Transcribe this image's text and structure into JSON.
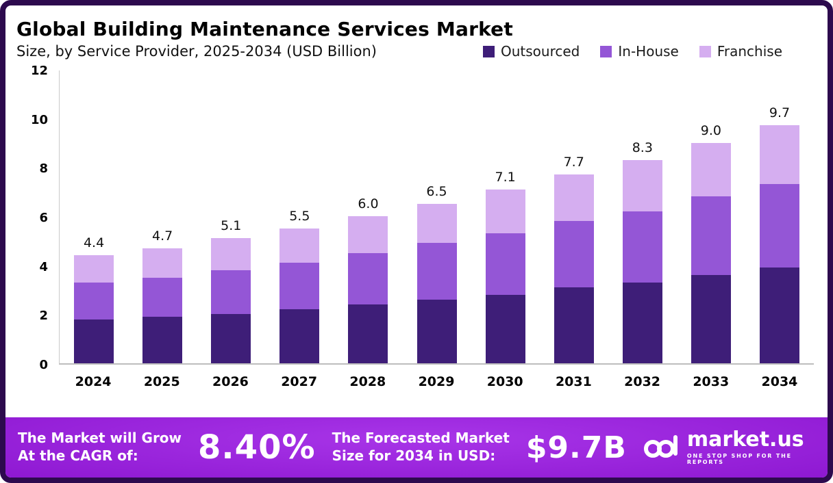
{
  "header": {
    "title": "Global Building Maintenance Services Market",
    "subtitle": "Size, by Service Provider, 2025-2034 (USD Billion)"
  },
  "chart_data": {
    "type": "bar",
    "stacked": true,
    "title": "Global Building Maintenance Services Market Size, by Service Provider, 2025-2034 (USD Billion)",
    "categories": [
      "2024",
      "2025",
      "2026",
      "2027",
      "2028",
      "2029",
      "2030",
      "2031",
      "2032",
      "2033",
      "2034"
    ],
    "series": [
      {
        "name": "Outsourced",
        "color": "#3e1e78",
        "values": [
          1.8,
          1.9,
          2.0,
          2.2,
          2.4,
          2.6,
          2.8,
          3.1,
          3.3,
          3.6,
          3.9
        ]
      },
      {
        "name": "In-House",
        "color": "#9456d6",
        "values": [
          1.5,
          1.6,
          1.8,
          1.9,
          2.1,
          2.3,
          2.5,
          2.7,
          2.9,
          3.2,
          3.4
        ]
      },
      {
        "name": "Franchise",
        "color": "#d5aef0",
        "values": [
          1.1,
          1.2,
          1.3,
          1.4,
          1.5,
          1.6,
          1.8,
          1.9,
          2.1,
          2.2,
          2.4
        ]
      }
    ],
    "totals": [
      4.4,
      4.7,
      5.1,
      5.5,
      6.0,
      6.5,
      7.1,
      7.7,
      8.3,
      9.0,
      9.7
    ],
    "xlabel": "",
    "ylabel": "",
    "ylim": [
      0,
      12
    ],
    "yticks": [
      0,
      2,
      4,
      6,
      8,
      10,
      12
    ],
    "grid": false,
    "legend_position": "top-right"
  },
  "banner": {
    "cagr_label": [
      "The Market will Grow",
      "At the CAGR of:"
    ],
    "cagr_value": "8.40%",
    "forecast_label": [
      "The Forecasted Market",
      "Size for 2034 in USD:"
    ],
    "forecast_value": "$9.7B",
    "brand": "market.us",
    "brand_tagline": "ONE STOP SHOP FOR THE REPORTS"
  }
}
